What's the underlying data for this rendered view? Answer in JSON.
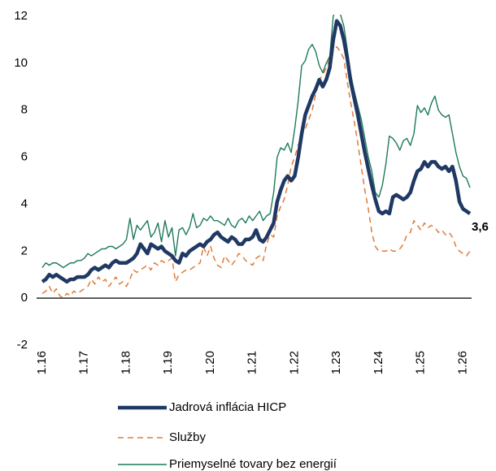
{
  "chart_data": {
    "type": "line",
    "categories": [
      "1.16",
      null,
      null,
      null,
      null,
      null,
      null,
      null,
      null,
      null,
      null,
      null,
      "1.17",
      null,
      null,
      null,
      null,
      null,
      null,
      null,
      null,
      null,
      null,
      null,
      "1.18",
      null,
      null,
      null,
      null,
      null,
      null,
      null,
      null,
      null,
      null,
      null,
      "1.19",
      null,
      null,
      null,
      null,
      null,
      null,
      null,
      null,
      null,
      null,
      null,
      "1.20",
      null,
      null,
      null,
      null,
      null,
      null,
      null,
      null,
      null,
      null,
      null,
      "1.21",
      null,
      null,
      null,
      null,
      null,
      null,
      null,
      null,
      null,
      null,
      null,
      "1.22",
      null,
      null,
      null,
      null,
      null,
      null,
      null,
      null,
      null,
      null,
      null,
      "1.23",
      null,
      null,
      null,
      null,
      null,
      null,
      null,
      null,
      null,
      null,
      null,
      "1.24",
      null,
      null,
      null,
      null,
      null,
      null,
      null,
      null,
      null,
      null,
      null,
      "1.25",
      null,
      null,
      null,
      null,
      null,
      null,
      null,
      null,
      null,
      null,
      null,
      "1.26",
      null,
      null
    ],
    "ylim": [
      -2,
      12
    ],
    "yticks": [
      -2,
      0,
      2,
      4,
      6,
      8,
      10,
      12
    ],
    "grid": false,
    "series": [
      {
        "name": "Jadrová inflácia HICP",
        "color": "#1f3864",
        "style": "solid-thick",
        "values": [
          0.7,
          0.8,
          1.0,
          0.9,
          1.0,
          0.9,
          0.8,
          0.7,
          0.8,
          0.8,
          0.9,
          0.9,
          0.9,
          1.0,
          1.2,
          1.3,
          1.2,
          1.3,
          1.4,
          1.3,
          1.5,
          1.6,
          1.5,
          1.5,
          1.5,
          1.6,
          1.7,
          1.9,
          2.3,
          2.1,
          1.9,
          2.3,
          2.2,
          2.1,
          2.2,
          2.0,
          1.9,
          1.8,
          1.6,
          1.5,
          1.9,
          1.8,
          2.0,
          2.1,
          2.2,
          2.3,
          2.2,
          2.4,
          2.5,
          2.7,
          2.8,
          2.6,
          2.5,
          2.4,
          2.6,
          2.5,
          2.3,
          2.3,
          2.5,
          2.5,
          2.6,
          2.9,
          2.5,
          2.4,
          2.6,
          2.9,
          3.2,
          4.1,
          4.6,
          5.0,
          5.2,
          5.0,
          5.2,
          6.0,
          7.0,
          7.8,
          8.2,
          8.6,
          8.9,
          9.3,
          9.0,
          9.3,
          9.8,
          11.0,
          11.8,
          11.6,
          11.0,
          10.2,
          9.2,
          8.5,
          7.8,
          7.0,
          6.2,
          5.5,
          4.8,
          4.2,
          3.7,
          3.6,
          3.7,
          3.6,
          4.3,
          4.4,
          4.3,
          4.2,
          4.3,
          4.5,
          5.0,
          5.4,
          5.5,
          5.8,
          5.6,
          5.8,
          5.8,
          5.6,
          5.5,
          5.6,
          5.4,
          5.6,
          5.0,
          4.1,
          3.8,
          3.7,
          3.6
        ],
        "value_labels": [
          null,
          null,
          null,
          null,
          null,
          null,
          null,
          null,
          null,
          null,
          null,
          null,
          null,
          null,
          null,
          null,
          null,
          null,
          null,
          null,
          null,
          null,
          null,
          null,
          null,
          null,
          null,
          null,
          null,
          null,
          null,
          null,
          null,
          null,
          null,
          null,
          null,
          null,
          null,
          null,
          null,
          null,
          null,
          null,
          null,
          null,
          null,
          null,
          null,
          null,
          null,
          null,
          null,
          null,
          null,
          null,
          null,
          null,
          null,
          null,
          null,
          null,
          null,
          null,
          null,
          null,
          null,
          null,
          null,
          null,
          null,
          null,
          null,
          null,
          null,
          null,
          null,
          null,
          null,
          null,
          null,
          null,
          null,
          null,
          null,
          null,
          null,
          null,
          null,
          null,
          null,
          null,
          null,
          null,
          null,
          null,
          null,
          null,
          null,
          null,
          null,
          null,
          null,
          null,
          null,
          null,
          null,
          null,
          null,
          null,
          null,
          null,
          null,
          null,
          null,
          null,
          null,
          null,
          null,
          null,
          null,
          null,
          "3,6"
        ]
      },
      {
        "name": "Služby",
        "color": "#e07b39",
        "style": "dashed",
        "values": [
          0.2,
          0.3,
          0.5,
          0.2,
          0.4,
          0.1,
          0.0,
          0.2,
          0.1,
          0.3,
          0.2,
          0.3,
          0.4,
          0.5,
          0.8,
          0.6,
          0.9,
          0.7,
          0.8,
          0.5,
          0.7,
          0.9,
          0.6,
          0.7,
          0.5,
          0.8,
          1.2,
          1.1,
          1.2,
          1.3,
          1.4,
          1.2,
          1.5,
          1.4,
          1.6,
          1.5,
          1.6,
          1.7,
          0.7,
          1.0,
          1.1,
          1.2,
          1.2,
          1.3,
          1.4,
          1.5,
          2.2,
          1.8,
          2.2,
          1.7,
          1.4,
          1.3,
          1.8,
          1.6,
          1.4,
          1.6,
          1.9,
          1.8,
          1.6,
          1.5,
          1.4,
          1.7,
          1.8,
          1.6,
          2.3,
          2.7,
          2.6,
          3.5,
          3.9,
          4.2,
          4.8,
          5.6,
          6.0,
          6.5,
          7.0,
          7.2,
          7.6,
          8.0,
          8.7,
          9.3,
          9.5,
          9.8,
          10.2,
          10.6,
          10.7,
          10.5,
          10.2,
          9.2,
          8.3,
          7.5,
          6.6,
          5.6,
          4.6,
          3.8,
          2.8,
          2.2,
          2.0,
          2.0,
          2.0,
          2.1,
          2.0,
          2.0,
          2.1,
          2.3,
          2.7,
          2.8,
          3.3,
          3.1,
          2.9,
          3.2,
          3.0,
          3.1,
          3.0,
          2.8,
          2.9,
          2.7,
          2.8,
          2.6,
          2.2,
          2.0,
          1.9,
          1.8,
          2.0
        ]
      },
      {
        "name": "Priemyselné tovary bez energií",
        "color": "#1e7a5a",
        "style": "solid-thin",
        "values": [
          1.3,
          1.5,
          1.4,
          1.5,
          1.5,
          1.4,
          1.3,
          1.4,
          1.5,
          1.5,
          1.6,
          1.6,
          1.7,
          1.9,
          1.8,
          1.9,
          2.0,
          2.1,
          2.1,
          2.2,
          2.2,
          2.1,
          2.2,
          2.3,
          2.5,
          3.4,
          2.5,
          3.1,
          2.9,
          3.1,
          3.3,
          2.6,
          2.8,
          3.2,
          2.4,
          3.3,
          2.6,
          3.0,
          1.8,
          2.9,
          3.0,
          2.7,
          3.0,
          3.6,
          3.0,
          3.1,
          3.4,
          3.3,
          3.5,
          3.3,
          3.3,
          3.2,
          3.1,
          3.4,
          3.1,
          3.0,
          3.3,
          3.4,
          3.2,
          3.5,
          3.3,
          3.5,
          3.7,
          3.3,
          3.5,
          3.6,
          4.5,
          6.0,
          6.4,
          6.3,
          6.6,
          6.2,
          7.2,
          8.4,
          9.9,
          10.1,
          10.6,
          10.8,
          10.5,
          9.9,
          9.6,
          10.0,
          10.3,
          12.0,
          12.4,
          12.1,
          11.6,
          10.6,
          9.5,
          8.8,
          8.2,
          7.6,
          6.8,
          6.0,
          5.4,
          4.5,
          4.3,
          4.8,
          5.7,
          6.9,
          6.8,
          6.6,
          6.3,
          6.7,
          6.8,
          6.5,
          7.0,
          8.2,
          7.9,
          8.1,
          7.8,
          8.3,
          8.6,
          8.0,
          7.8,
          7.7,
          7.8,
          7.0,
          6.2,
          5.6,
          5.2,
          5.1,
          4.7
        ]
      }
    ]
  }
}
